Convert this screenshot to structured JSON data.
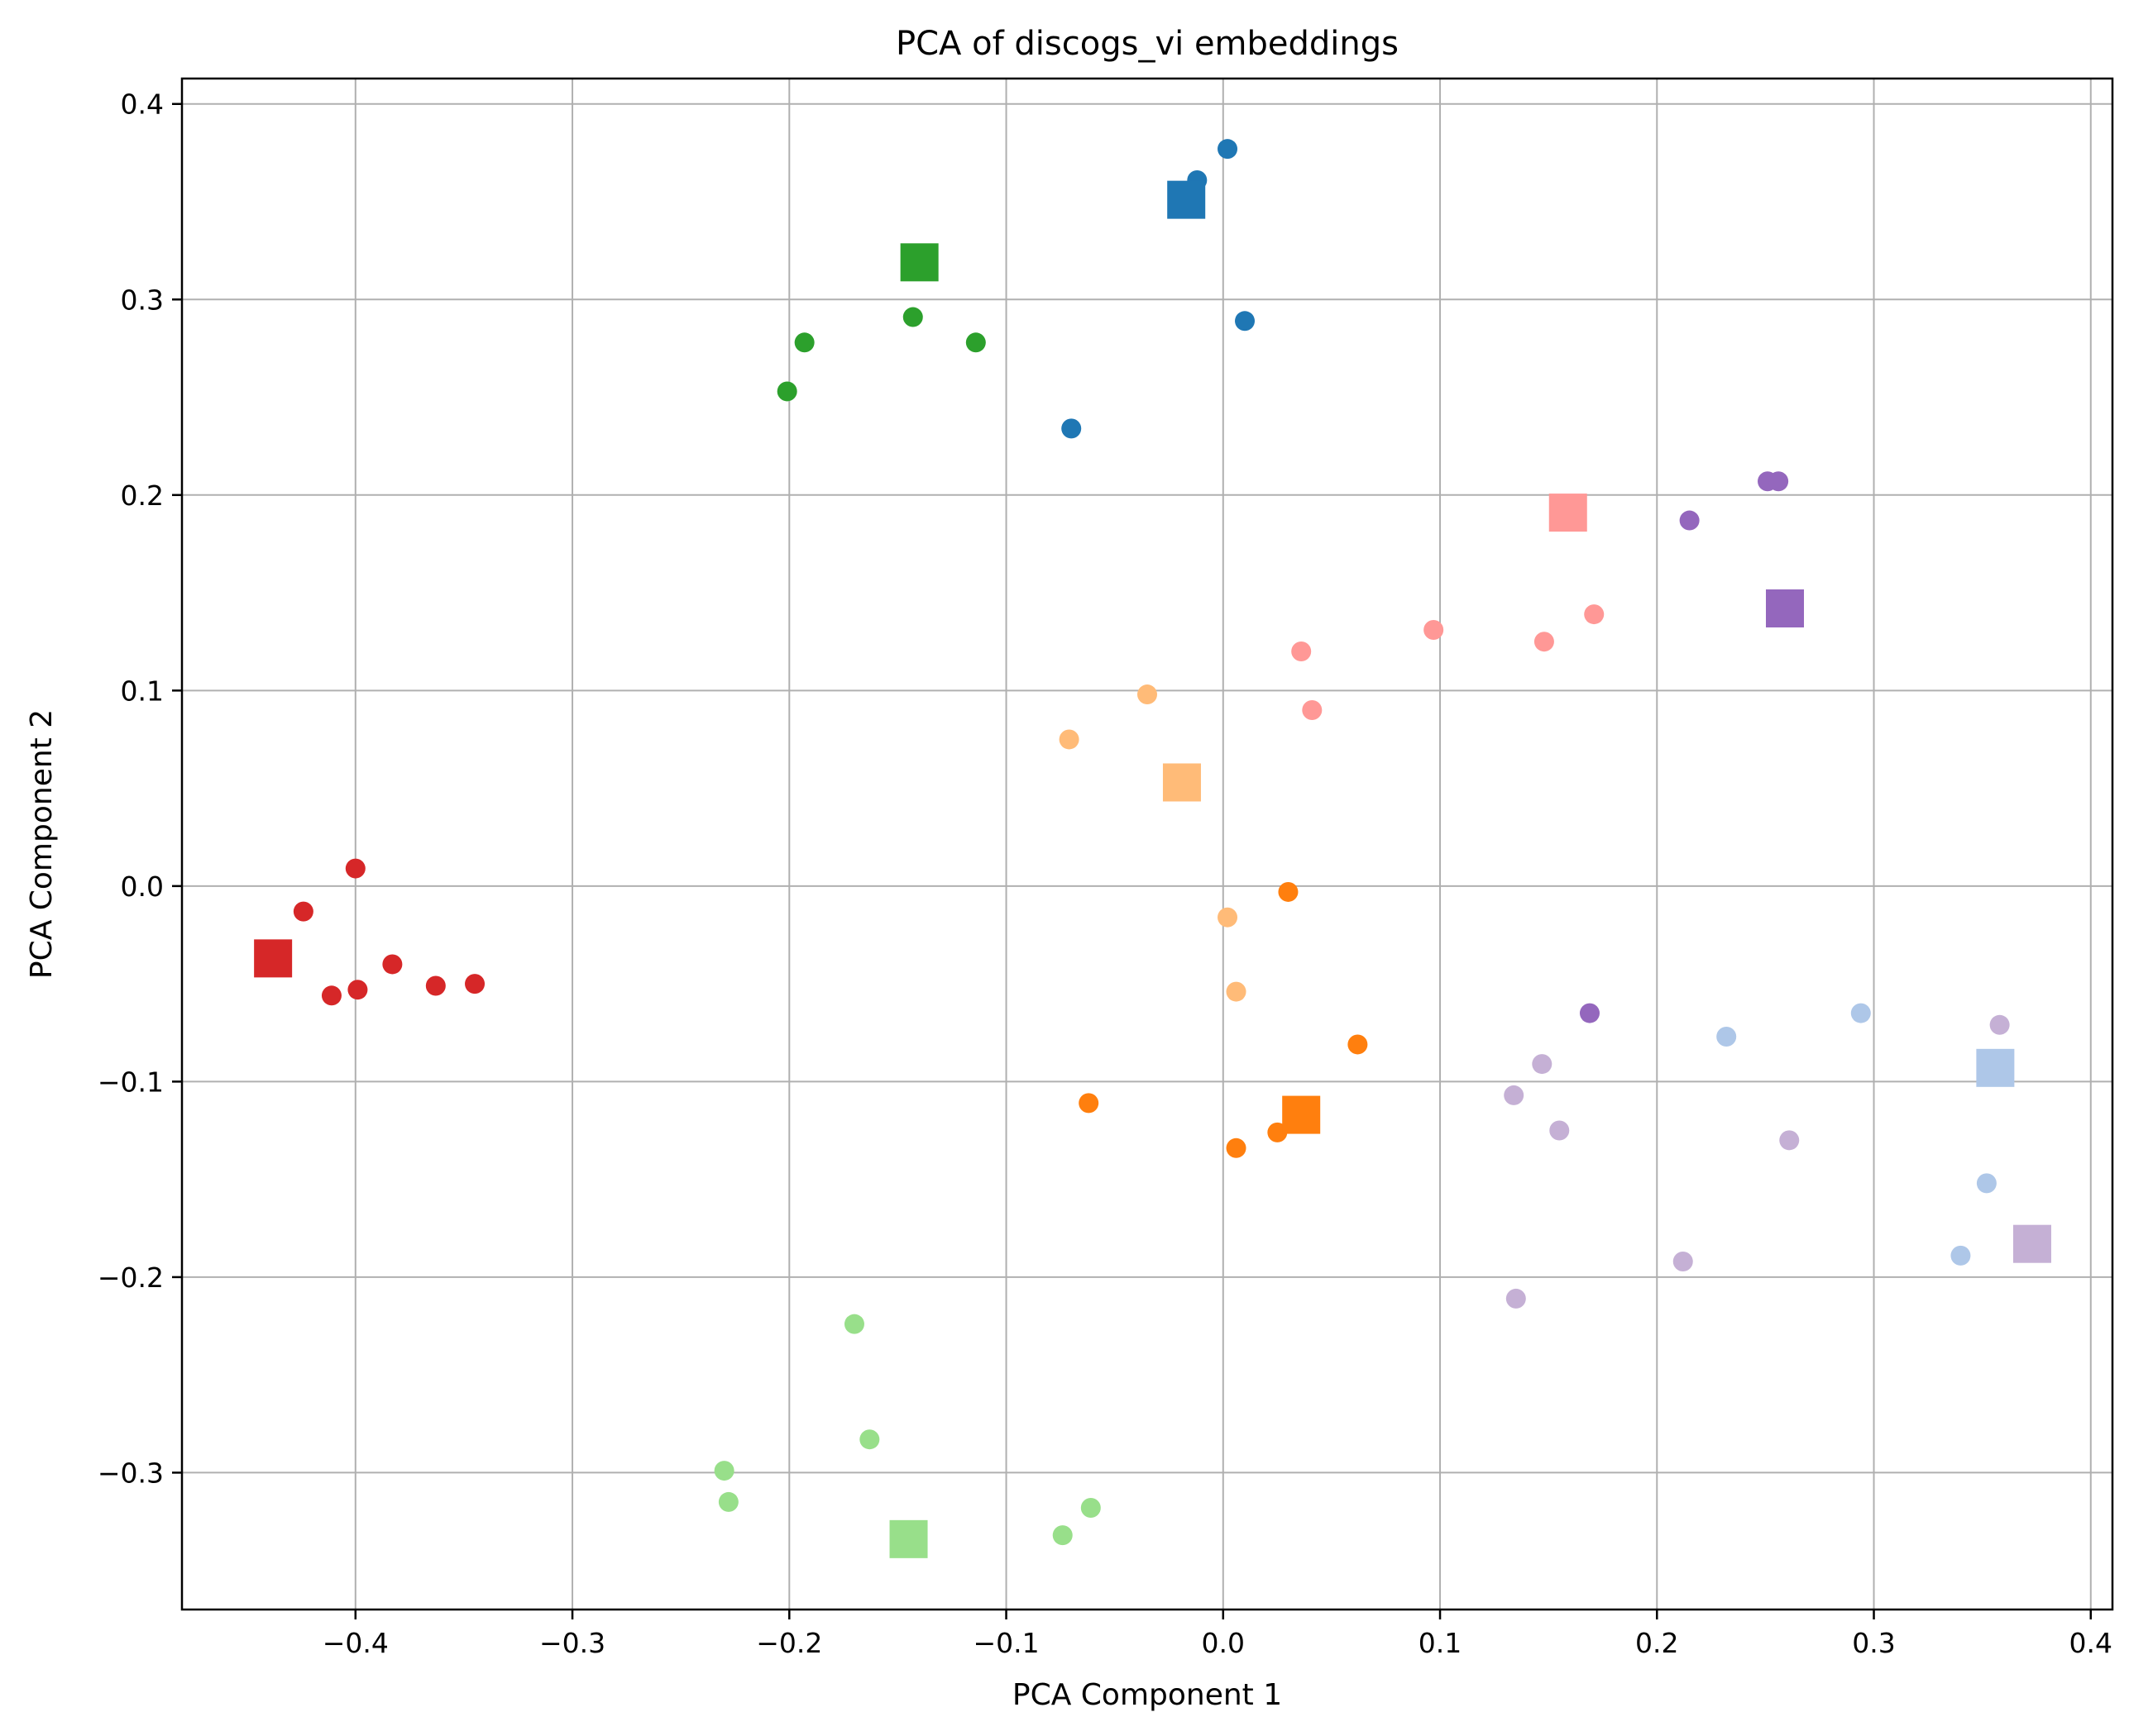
{
  "chart_data": {
    "type": "scatter",
    "title": "PCA of discogs_vi embeddings",
    "xlabel": "PCA Component 1",
    "ylabel": "PCA Component 2",
    "xlim": [
      -0.48,
      0.41
    ],
    "ylim": [
      -0.37,
      0.413
    ],
    "xticks": [
      -0.4,
      -0.3,
      -0.2,
      -0.1,
      0.0,
      0.1,
      0.2,
      0.3,
      0.4
    ],
    "yticks": [
      -0.3,
      -0.2,
      -0.1,
      0.0,
      0.1,
      0.2,
      0.3,
      0.4
    ],
    "xtick_labels": [
      "−0.4",
      "−0.3",
      "−0.2",
      "−0.1",
      "0.0",
      "0.1",
      "0.2",
      "0.3",
      "0.4"
    ],
    "ytick_labels": [
      "−0.3",
      "−0.2",
      "−0.1",
      "0.0",
      "0.1",
      "0.2",
      "0.3",
      "0.4"
    ],
    "grid": true,
    "series": [
      {
        "color": "#1f77b4",
        "centroid": [
          -0.017,
          0.351
        ],
        "points": [
          [
            0.002,
            0.377
          ],
          [
            -0.012,
            0.361
          ],
          [
            0.01,
            0.289
          ],
          [
            -0.07,
            0.234
          ]
        ]
      },
      {
        "color": "#2ca02c",
        "centroid": [
          -0.14,
          0.319
        ],
        "points": [
          [
            -0.193,
            0.278
          ],
          [
            -0.143,
            0.291
          ],
          [
            -0.114,
            0.278
          ],
          [
            -0.201,
            0.253
          ]
        ]
      },
      {
        "color": "#ff9896",
        "centroid": [
          0.159,
          0.191
        ],
        "points": [
          [
            0.097,
            0.131
          ],
          [
            0.148,
            0.125
          ],
          [
            0.171,
            0.139
          ],
          [
            0.036,
            0.12
          ],
          [
            0.041,
            0.09
          ]
        ]
      },
      {
        "color": "#9467bd",
        "centroid": [
          0.259,
          0.142
        ],
        "points": [
          [
            0.251,
            0.207
          ],
          [
            0.256,
            0.207
          ],
          [
            0.215,
            0.187
          ],
          [
            0.169,
            -0.065
          ]
        ]
      },
      {
        "color": "#ffbb78",
        "centroid": [
          -0.019,
          0.053
        ],
        "points": [
          [
            -0.035,
            0.098
          ],
          [
            -0.071,
            0.075
          ],
          [
            0.002,
            -0.016
          ],
          [
            0.006,
            -0.054
          ]
        ]
      },
      {
        "color": "#d62728",
        "centroid": [
          -0.438,
          -0.037
        ],
        "points": [
          [
            -0.4,
            0.009
          ],
          [
            -0.424,
            -0.013
          ],
          [
            -0.383,
            -0.04
          ],
          [
            -0.363,
            -0.051
          ],
          [
            -0.345,
            -0.05
          ],
          [
            -0.399,
            -0.053
          ],
          [
            -0.411,
            -0.056
          ]
        ]
      },
      {
        "color": "#ff7f0e",
        "centroid": [
          0.036,
          -0.117
        ],
        "points": [
          [
            0.03,
            -0.003
          ],
          [
            0.062,
            -0.081
          ],
          [
            -0.062,
            -0.111
          ],
          [
            0.025,
            -0.126
          ],
          [
            0.006,
            -0.134
          ]
        ]
      },
      {
        "color": "#aec7e8",
        "centroid": [
          0.356,
          -0.093
        ],
        "points": [
          [
            0.294,
            -0.065
          ],
          [
            0.232,
            -0.077
          ],
          [
            0.352,
            -0.152
          ],
          [
            0.34,
            -0.189
          ]
        ]
      },
      {
        "color": "#c5b0d5",
        "centroid": [
          0.373,
          -0.183
        ],
        "points": [
          [
            0.358,
            -0.071
          ],
          [
            0.147,
            -0.091
          ],
          [
            0.134,
            -0.107
          ],
          [
            0.155,
            -0.125
          ],
          [
            0.261,
            -0.13
          ],
          [
            0.212,
            -0.192
          ],
          [
            0.135,
            -0.211
          ]
        ]
      },
      {
        "color": "#98df8a",
        "centroid": [
          -0.145,
          -0.334
        ],
        "points": [
          [
            -0.17,
            -0.224
          ],
          [
            -0.163,
            -0.283
          ],
          [
            -0.23,
            -0.299
          ],
          [
            -0.228,
            -0.315
          ],
          [
            -0.061,
            -0.318
          ],
          [
            -0.074,
            -0.332
          ]
        ]
      }
    ]
  }
}
